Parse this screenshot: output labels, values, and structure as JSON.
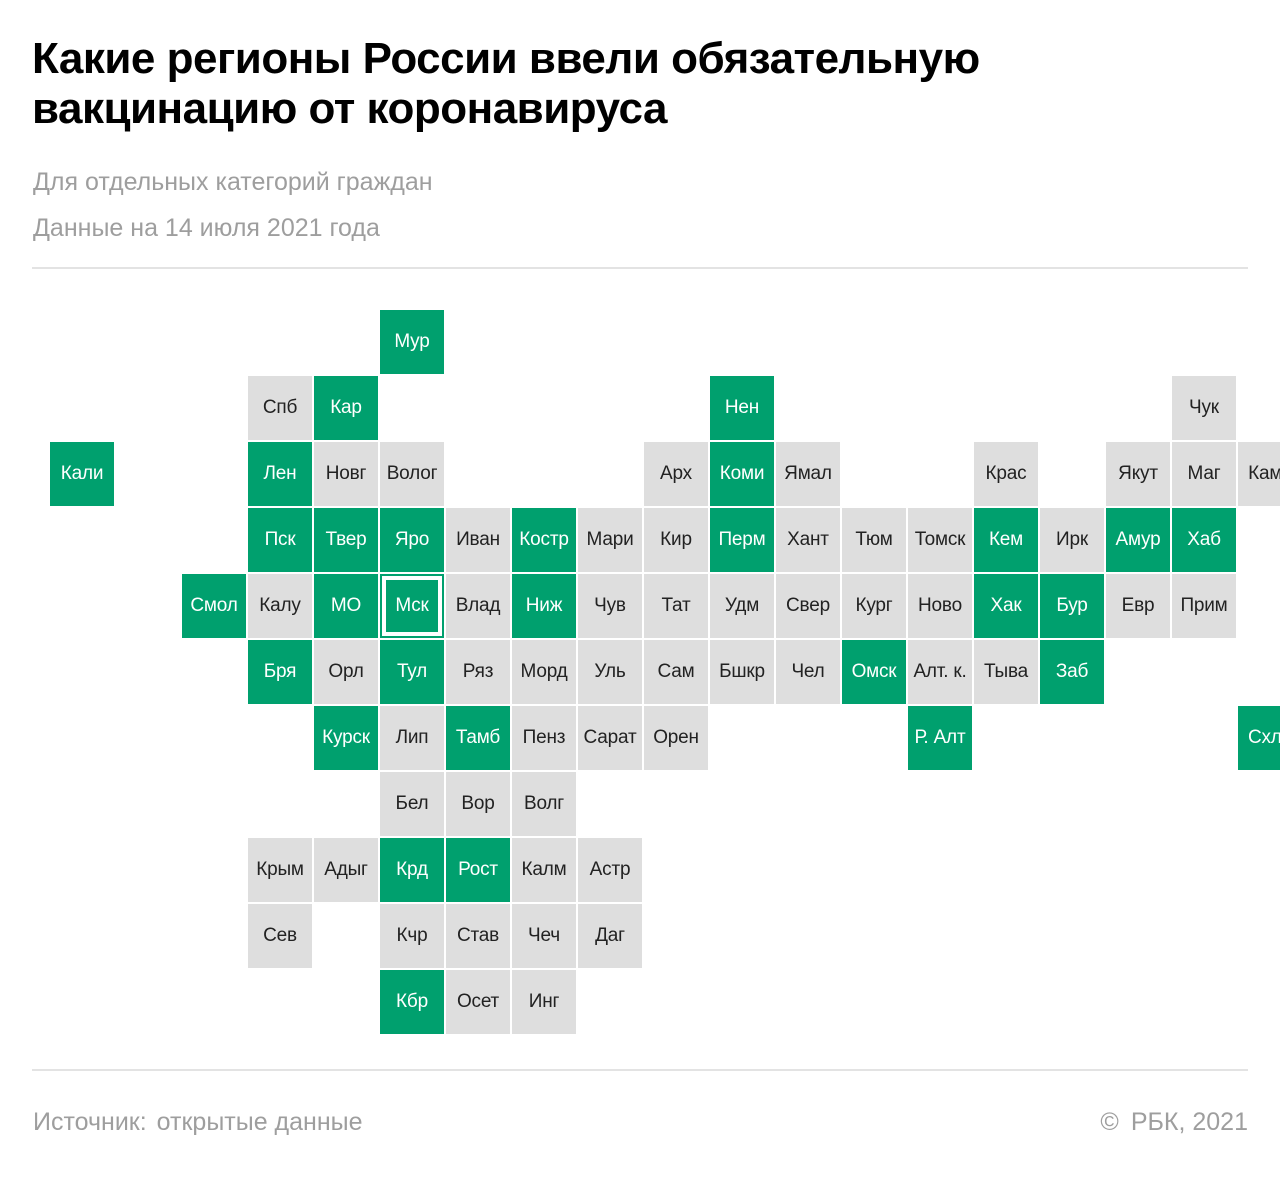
{
  "header": {
    "title_line1": "Какие регионы России ввели обязательную",
    "title_line2": "вакцинацию от коронавируса",
    "subtitle": "Для отдельных категорий граждан",
    "date_note": "Данные на 14 июля 2021 года"
  },
  "legend_colors": {
    "mandatory": "#00a06e",
    "not_mandatory": "#dedede"
  },
  "regions": [
    {
      "label": "Мур",
      "mandatory": true,
      "col": 5,
      "row": 0
    },
    {
      "label": "Спб",
      "mandatory": false,
      "col": 3,
      "row": 1
    },
    {
      "label": "Кар",
      "mandatory": true,
      "col": 4,
      "row": 1
    },
    {
      "label": "Нен",
      "mandatory": true,
      "col": 10,
      "row": 1
    },
    {
      "label": "Чук",
      "mandatory": false,
      "col": 17,
      "row": 1
    },
    {
      "label": "Кали",
      "mandatory": true,
      "col": 0,
      "row": 2
    },
    {
      "label": "Лен",
      "mandatory": true,
      "col": 3,
      "row": 2
    },
    {
      "label": "Новг",
      "mandatory": false,
      "col": 4,
      "row": 2
    },
    {
      "label": "Волог",
      "mandatory": false,
      "col": 5,
      "row": 2
    },
    {
      "label": "Арх",
      "mandatory": false,
      "col": 9,
      "row": 2
    },
    {
      "label": "Коми",
      "mandatory": true,
      "col": 10,
      "row": 2
    },
    {
      "label": "Ямал",
      "mandatory": false,
      "col": 11,
      "row": 2
    },
    {
      "label": "Крас",
      "mandatory": false,
      "col": 14,
      "row": 2
    },
    {
      "label": "Якут",
      "mandatory": false,
      "col": 16,
      "row": 2
    },
    {
      "label": "Маг",
      "mandatory": false,
      "col": 17,
      "row": 2
    },
    {
      "label": "Камч",
      "mandatory": false,
      "col": 18,
      "row": 2
    },
    {
      "label": "Пск",
      "mandatory": true,
      "col": 3,
      "row": 3
    },
    {
      "label": "Твер",
      "mandatory": true,
      "col": 4,
      "row": 3
    },
    {
      "label": "Яро",
      "mandatory": true,
      "col": 5,
      "row": 3
    },
    {
      "label": "Иван",
      "mandatory": false,
      "col": 6,
      "row": 3
    },
    {
      "label": "Костр",
      "mandatory": true,
      "col": 7,
      "row": 3
    },
    {
      "label": "Мари",
      "mandatory": false,
      "col": 8,
      "row": 3
    },
    {
      "label": "Кир",
      "mandatory": false,
      "col": 9,
      "row": 3
    },
    {
      "label": "Перм",
      "mandatory": true,
      "col": 10,
      "row": 3
    },
    {
      "label": "Хант",
      "mandatory": false,
      "col": 11,
      "row": 3
    },
    {
      "label": "Тюм",
      "mandatory": false,
      "col": 12,
      "row": 3
    },
    {
      "label": "Томск",
      "mandatory": false,
      "col": 13,
      "row": 3
    },
    {
      "label": "Кем",
      "mandatory": true,
      "col": 14,
      "row": 3
    },
    {
      "label": "Ирк",
      "mandatory": false,
      "col": 15,
      "row": 3
    },
    {
      "label": "Амур",
      "mandatory": true,
      "col": 16,
      "row": 3
    },
    {
      "label": "Хаб",
      "mandatory": true,
      "col": 17,
      "row": 3
    },
    {
      "label": "Смол",
      "mandatory": true,
      "col": 2,
      "row": 4
    },
    {
      "label": "Калу",
      "mandatory": false,
      "col": 3,
      "row": 4
    },
    {
      "label": "МО",
      "mandatory": true,
      "col": 4,
      "row": 4
    },
    {
      "label": "Мск",
      "mandatory": true,
      "col": 5,
      "row": 4,
      "capital": true
    },
    {
      "label": "Влад",
      "mandatory": false,
      "col": 6,
      "row": 4
    },
    {
      "label": "Ниж",
      "mandatory": true,
      "col": 7,
      "row": 4
    },
    {
      "label": "Чув",
      "mandatory": false,
      "col": 8,
      "row": 4
    },
    {
      "label": "Тат",
      "mandatory": false,
      "col": 9,
      "row": 4
    },
    {
      "label": "Удм",
      "mandatory": false,
      "col": 10,
      "row": 4
    },
    {
      "label": "Свер",
      "mandatory": false,
      "col": 11,
      "row": 4
    },
    {
      "label": "Кург",
      "mandatory": false,
      "col": 12,
      "row": 4
    },
    {
      "label": "Ново",
      "mandatory": false,
      "col": 13,
      "row": 4
    },
    {
      "label": "Хак",
      "mandatory": true,
      "col": 14,
      "row": 4
    },
    {
      "label": "Бур",
      "mandatory": true,
      "col": 15,
      "row": 4
    },
    {
      "label": "Евр",
      "mandatory": false,
      "col": 16,
      "row": 4
    },
    {
      "label": "Прим",
      "mandatory": false,
      "col": 17,
      "row": 4
    },
    {
      "label": "Бря",
      "mandatory": true,
      "col": 3,
      "row": 5
    },
    {
      "label": "Орл",
      "mandatory": false,
      "col": 4,
      "row": 5
    },
    {
      "label": "Тул",
      "mandatory": true,
      "col": 5,
      "row": 5
    },
    {
      "label": "Ряз",
      "mandatory": false,
      "col": 6,
      "row": 5
    },
    {
      "label": "Морд",
      "mandatory": false,
      "col": 7,
      "row": 5
    },
    {
      "label": "Уль",
      "mandatory": false,
      "col": 8,
      "row": 5
    },
    {
      "label": "Сам",
      "mandatory": false,
      "col": 9,
      "row": 5
    },
    {
      "label": "Бшкр",
      "mandatory": false,
      "col": 10,
      "row": 5
    },
    {
      "label": "Чел",
      "mandatory": false,
      "col": 11,
      "row": 5
    },
    {
      "label": "Омск",
      "mandatory": true,
      "col": 12,
      "row": 5
    },
    {
      "label": "Алт. к.",
      "mandatory": false,
      "col": 13,
      "row": 5
    },
    {
      "label": "Тыва",
      "mandatory": false,
      "col": 14,
      "row": 5
    },
    {
      "label": "Заб",
      "mandatory": true,
      "col": 15,
      "row": 5
    },
    {
      "label": "Курск",
      "mandatory": true,
      "col": 4,
      "row": 6
    },
    {
      "label": "Лип",
      "mandatory": false,
      "col": 5,
      "row": 6
    },
    {
      "label": "Тамб",
      "mandatory": true,
      "col": 6,
      "row": 6
    },
    {
      "label": "Пенз",
      "mandatory": false,
      "col": 7,
      "row": 6
    },
    {
      "label": "Сарат",
      "mandatory": false,
      "col": 8,
      "row": 6
    },
    {
      "label": "Орен",
      "mandatory": false,
      "col": 9,
      "row": 6
    },
    {
      "label": "Р. Алт",
      "mandatory": true,
      "col": 13,
      "row": 6
    },
    {
      "label": "Схлн",
      "mandatory": true,
      "col": 18,
      "row": 6
    },
    {
      "label": "Бел",
      "mandatory": false,
      "col": 5,
      "row": 7
    },
    {
      "label": "Вор",
      "mandatory": false,
      "col": 6,
      "row": 7
    },
    {
      "label": "Волг",
      "mandatory": false,
      "col": 7,
      "row": 7
    },
    {
      "label": "Крым",
      "mandatory": false,
      "col": 3,
      "row": 8
    },
    {
      "label": "Адыг",
      "mandatory": false,
      "col": 4,
      "row": 8
    },
    {
      "label": "Крд",
      "mandatory": true,
      "col": 5,
      "row": 8
    },
    {
      "label": "Рост",
      "mandatory": true,
      "col": 6,
      "row": 8
    },
    {
      "label": "Калм",
      "mandatory": false,
      "col": 7,
      "row": 8
    },
    {
      "label": "Астр",
      "mandatory": false,
      "col": 8,
      "row": 8
    },
    {
      "label": "Сев",
      "mandatory": false,
      "col": 3,
      "row": 9
    },
    {
      "label": "Кчр",
      "mandatory": false,
      "col": 5,
      "row": 9
    },
    {
      "label": "Став",
      "mandatory": false,
      "col": 6,
      "row": 9
    },
    {
      "label": "Чеч",
      "mandatory": false,
      "col": 7,
      "row": 9
    },
    {
      "label": "Даг",
      "mandatory": false,
      "col": 8,
      "row": 9
    },
    {
      "label": "Кбр",
      "mandatory": true,
      "col": 5,
      "row": 10
    },
    {
      "label": "Осет",
      "mandatory": false,
      "col": 6,
      "row": 10
    },
    {
      "label": "Инг",
      "mandatory": false,
      "col": 7,
      "row": 10
    }
  ],
  "footer": {
    "source_label": "Источник:",
    "source_value": "открытые данные",
    "copyright_symbol": "©",
    "credit": "РБК, 2021"
  }
}
